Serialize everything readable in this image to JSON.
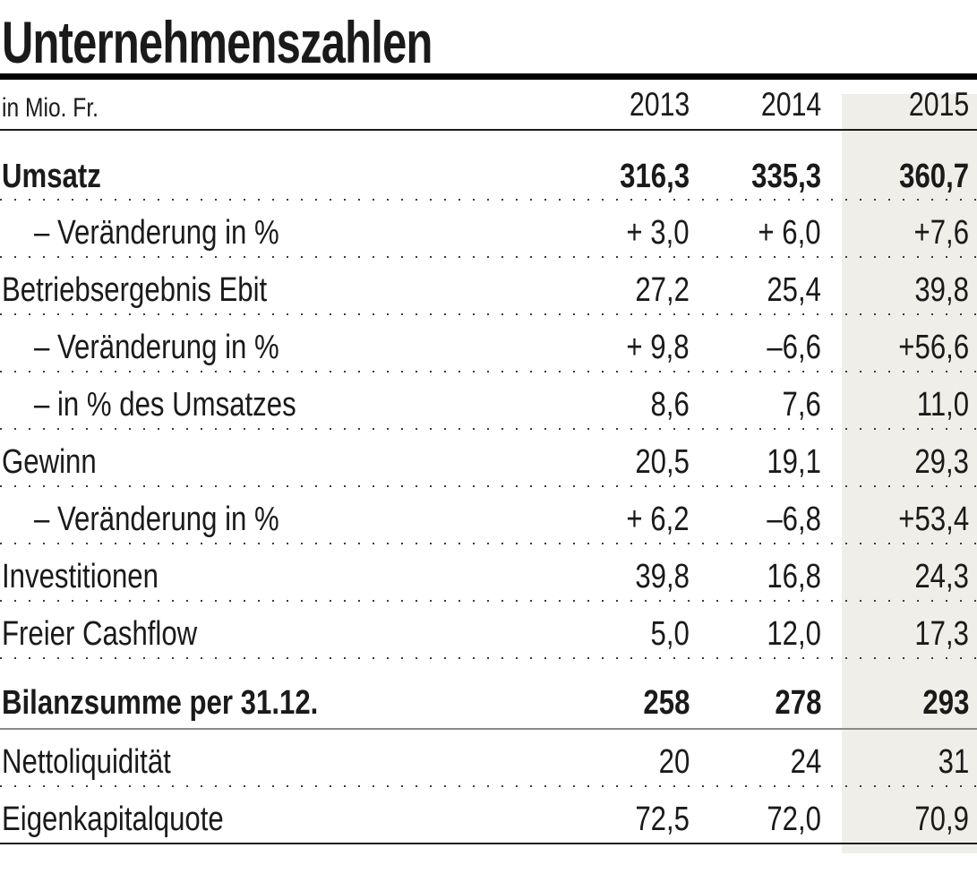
{
  "title": "Unternehmenszahlen",
  "header": {
    "unit_label": "in Mio. Fr."
  },
  "chart_data": {
    "type": "table",
    "title": "Unternehmenszahlen",
    "unit": "Mio. Fr.",
    "columns": [
      "2013",
      "2014",
      "2015"
    ],
    "highlight_column": "2015",
    "colors": {
      "highlight_background": "#efeee8",
      "text": "#1a1a1a"
    },
    "rows": [
      {
        "label": "Umsatz",
        "values": [
          "316,3",
          "335,3",
          "360,7"
        ],
        "emphasis": true
      },
      {
        "label": "– Veränderung in %",
        "values": [
          "+ 3,0",
          "+ 6,0",
          "+7,6"
        ],
        "indent": true
      },
      {
        "label": "Betriebsergebnis Ebit",
        "values": [
          "27,2",
          "25,4",
          "39,8"
        ]
      },
      {
        "label": "– Veränderung in %",
        "values": [
          "+ 9,8",
          "–6,6",
          "+56,6"
        ],
        "indent": true
      },
      {
        "label": "– in % des Umsatzes",
        "values": [
          "8,6",
          "7,6",
          "11,0"
        ],
        "indent": true
      },
      {
        "label": "Gewinn",
        "values": [
          "20,5",
          "19,1",
          "29,3"
        ]
      },
      {
        "label": "– Veränderung in %",
        "values": [
          "+ 6,2",
          "–6,8",
          "+53,4"
        ],
        "indent": true
      },
      {
        "label": "Investitionen",
        "values": [
          "39,8",
          "16,8",
          "24,3"
        ]
      },
      {
        "label": "Freier Cashflow",
        "values": [
          "5,0",
          "12,0",
          "17,3"
        ]
      },
      {
        "label": "Bilanzsumme per 31.12.",
        "values": [
          "258",
          "278",
          "293"
        ],
        "emphasis": true
      },
      {
        "label": "Nettoliquidität",
        "values": [
          "20",
          "24",
          "31"
        ]
      },
      {
        "label": "Eigenkapitalquote",
        "values": [
          "72,5",
          "72,0",
          "70,9"
        ]
      }
    ]
  }
}
